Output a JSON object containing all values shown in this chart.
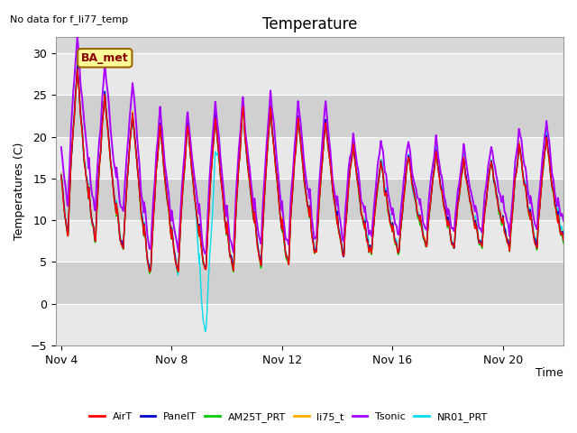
{
  "title": "Temperature",
  "xlabel": "Time",
  "ylabel": "Temperatures (C)",
  "annotation_text": "No data for f_li77_temp",
  "legend_box_text": "BA_met",
  "ylim": [
    -5,
    32
  ],
  "yticks": [
    -5,
    0,
    5,
    10,
    15,
    20,
    25,
    30
  ],
  "background_color": "#ffffff",
  "plot_bg_color": "#d8d8d8",
  "band_color_light": "#e8e8e8",
  "band_color_dark": "#d0d0d0",
  "grid_color": "#ffffff",
  "series": {
    "AirT": {
      "color": "#ff0000",
      "lw": 1.0
    },
    "PanelT": {
      "color": "#0000cc",
      "lw": 1.0
    },
    "AM25T_PRT": {
      "color": "#00cc00",
      "lw": 1.0
    },
    "li75_t": {
      "color": "#ffaa00",
      "lw": 1.0
    },
    "Tsonic": {
      "color": "#aa00ff",
      "lw": 1.4
    },
    "NR01_PRT": {
      "color": "#00ddee",
      "lw": 1.0
    }
  },
  "xtick_positions": [
    4,
    8,
    12,
    16,
    20
  ],
  "xtick_labels": [
    "Nov 4",
    "Nov 8",
    "Nov 12",
    "Nov 16",
    "Nov 20"
  ],
  "xlim": [
    3.8,
    22.2
  ],
  "title_fontsize": 12,
  "axis_fontsize": 9,
  "tick_fontsize": 9,
  "legend_box_color": "#ffff99",
  "legend_box_edge": "#996600"
}
